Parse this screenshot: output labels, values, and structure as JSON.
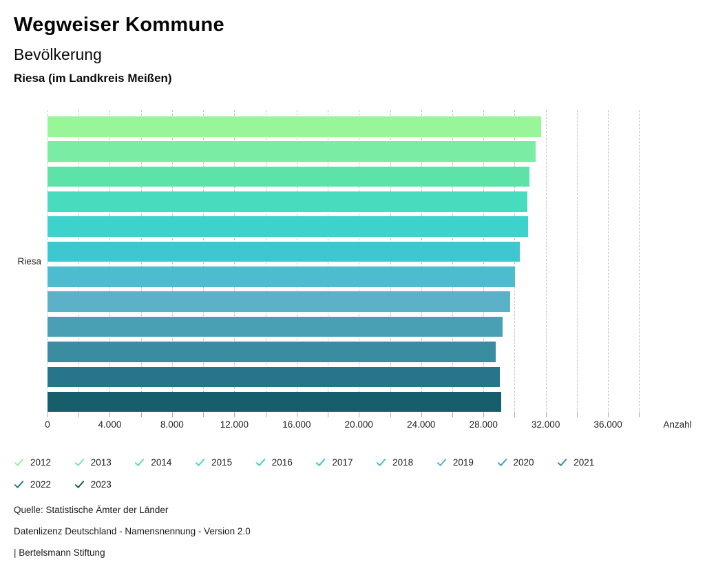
{
  "header": {
    "title": "Wegweiser Kommune",
    "subtitle": "Bevölkerung",
    "region": "Riesa (im Landkreis Meißen)"
  },
  "chart_data": {
    "type": "bar",
    "orientation": "horizontal",
    "title": "Bevölkerung",
    "category": "Riesa",
    "xlabel": "Anzahl",
    "xlim": [
      0,
      39000
    ],
    "gridline_step": 2000,
    "label_step": 4000,
    "grid": "dashed-vertical",
    "legend_position": "bottom",
    "xtick_labels": [
      "0",
      "4.000",
      "8.000",
      "12.000",
      "16.000",
      "20.000",
      "24.000",
      "28.000",
      "32.000",
      "36.000"
    ],
    "series": [
      {
        "year": "2012",
        "value": 31700,
        "color": "#98F598"
      },
      {
        "year": "2013",
        "value": 31360,
        "color": "#7BECA3"
      },
      {
        "year": "2014",
        "value": 30960,
        "color": "#5DE2A7"
      },
      {
        "year": "2015",
        "value": 30820,
        "color": "#49DBBE"
      },
      {
        "year": "2016",
        "value": 30870,
        "color": "#3DD3CC"
      },
      {
        "year": "2017",
        "value": 30340,
        "color": "#3EC6D1"
      },
      {
        "year": "2018",
        "value": 30030,
        "color": "#4DBCCE"
      },
      {
        "year": "2019",
        "value": 29720,
        "color": "#5BB2C8"
      },
      {
        "year": "2020",
        "value": 29240,
        "color": "#49A0B5"
      },
      {
        "year": "2021",
        "value": 28790,
        "color": "#3A8CA1"
      },
      {
        "year": "2022",
        "value": 29060,
        "color": "#27758A"
      },
      {
        "year": "2023",
        "value": 29120,
        "color": "#175E6C"
      }
    ]
  },
  "footer": {
    "lines": [
      "Quelle: Statistische Ämter der Länder",
      "Datenlizenz Deutschland - Namensnennung - Version 2.0",
      "| Bertelsmann Stiftung"
    ]
  }
}
